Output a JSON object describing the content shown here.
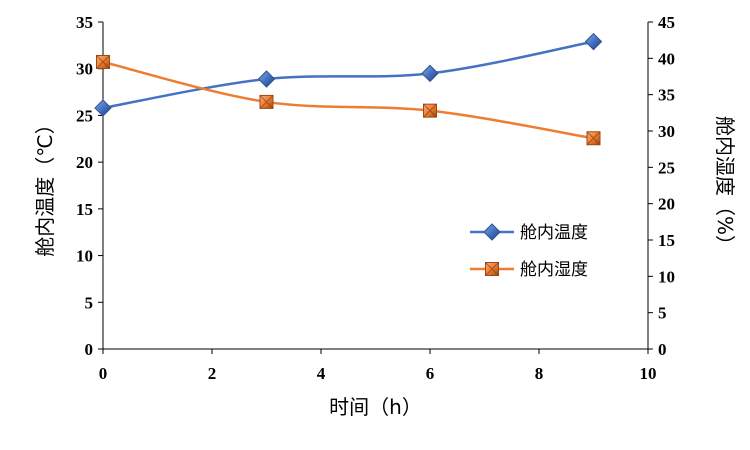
{
  "chart_data": {
    "type": "line",
    "x": [
      0,
      3,
      6,
      9
    ],
    "xlabel": "时间（h）",
    "xlim": [
      0,
      10
    ],
    "xticks": [
      0,
      2,
      4,
      6,
      8,
      10
    ],
    "ylabel": "舱内温度（℃）",
    "ylim": [
      0,
      35
    ],
    "yticks": [
      0,
      5,
      10,
      15,
      20,
      25,
      30,
      35
    ],
    "y2label": "舱内湿度（%）",
    "y2lim": [
      0,
      45
    ],
    "y2ticks": [
      0,
      5,
      10,
      15,
      20,
      25,
      30,
      35,
      40,
      45
    ],
    "grid": false,
    "legend_position": "right-middle",
    "series": [
      {
        "name": "舱内温度",
        "axis": "left",
        "color": "#4472C4",
        "marker": "diamond",
        "values": [
          25.8,
          28.9,
          29.5,
          32.9
        ]
      },
      {
        "name": "舱内湿度",
        "axis": "right",
        "color": "#ED7D31",
        "marker": "square",
        "values": [
          39.5,
          34.0,
          32.8,
          29.0
        ]
      }
    ]
  }
}
